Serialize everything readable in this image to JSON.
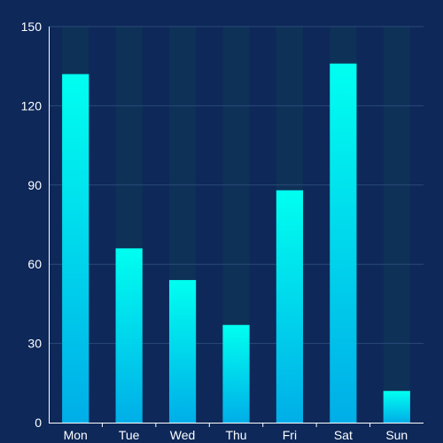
{
  "chart_data": {
    "type": "bar",
    "title": "",
    "xlabel": "",
    "ylabel": "",
    "categories": [
      "Mon",
      "Tue",
      "Wed",
      "Thu",
      "Fri",
      "Sat",
      "Sun"
    ],
    "values": [
      132,
      66,
      54,
      37,
      88,
      136,
      12
    ],
    "ylim": [
      0,
      150
    ],
    "yticks": [
      "0",
      "30",
      "60",
      "90",
      "120",
      "150"
    ],
    "ytick_values": [
      0,
      30,
      60,
      90,
      120,
      150
    ],
    "grid": true,
    "background_bars": true,
    "colors": {
      "background": "#0d2859",
      "bar_top": "#00fff0",
      "bar_bottom": "#00aee8",
      "shadow_bar": "#0e3157",
      "grid": "#2b4a78",
      "axis": "#ffffff",
      "text": "#ffffff"
    }
  }
}
